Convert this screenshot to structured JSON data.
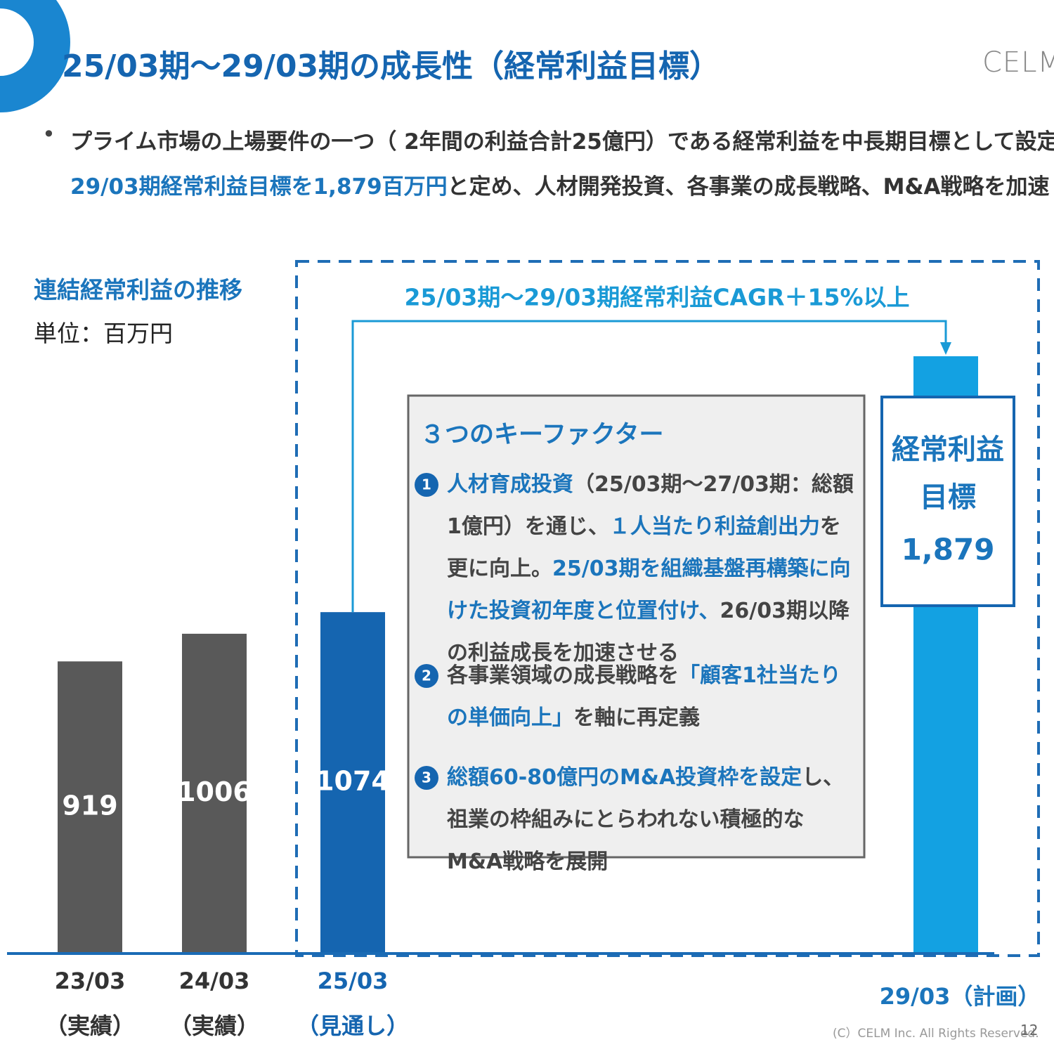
{
  "header": {
    "title": "25/03期～29/03期の成長性（経常利益目標）",
    "logo": "CELM",
    "bullet": [
      {
        "segments": [
          {
            "text": "プライム市場の上場要件の一つ（ 2年間の利益合計25億円）である経常利益を中長期目標として設定。",
            "highlight": false
          }
        ]
      },
      {
        "segments": [
          {
            "text": "29/03期経常利益目標を1,879百万円",
            "highlight": true
          },
          {
            "text": "と定め、人材開発投資、各事業の成長戦略、M&A戦略を加速",
            "highlight": false
          }
        ]
      }
    ]
  },
  "chart_data": {
    "type": "bar",
    "title": "連結経常利益の推移",
    "unit": "単位：百万円",
    "categories": [
      "23/03",
      "24/03",
      "25/03",
      "29/03"
    ],
    "category_notes": [
      "（実績）",
      "（実績）",
      "（見通し）",
      "（計画）"
    ],
    "values": [
      919,
      1006,
      1074,
      1879
    ],
    "value_labels": [
      "919",
      "1006",
      "1074",
      "1,879"
    ],
    "colors": [
      "#595959",
      "#595959",
      "#1565b0",
      "#13a1e2"
    ],
    "target_label": [
      "経常利益",
      "目標"
    ],
    "annotation": "25/03期～29/03期経常利益CAGR＋15%以上"
  },
  "key_factors": {
    "title": "３つのキーファクター",
    "items": [
      {
        "number": "1",
        "segments": [
          {
            "text": "人材育成投資",
            "highlight": true
          },
          {
            "text": "（25/03期～27/03期：総額1億円）を通じ、",
            "highlight": false
          },
          {
            "text": "１人当たり利益創出力",
            "highlight": true
          },
          {
            "text": "を更に向上。",
            "highlight": false
          },
          {
            "text": "25/03期を組織基盤再構築に向けた投資初年度と位置付け、",
            "highlight": true
          },
          {
            "text": "26/03期以降の利益成長を加速させる",
            "highlight": false
          }
        ]
      },
      {
        "number": "2",
        "segments": [
          {
            "text": "各事業領域の成長戦略を",
            "highlight": false
          },
          {
            "text": "「顧客1社当たりの単価向上」",
            "highlight": true
          },
          {
            "text": "を軸に再定義",
            "highlight": false
          }
        ]
      },
      {
        "number": "3",
        "segments": [
          {
            "text": "総額60-80億円のM&A投資枠を設定",
            "highlight": true
          },
          {
            "text": "し、祖業の枠組みにとらわれない積極的なM&A戦略を展開",
            "highlight": false
          }
        ]
      }
    ]
  },
  "footer": {
    "copyright": "(C）CELM Inc. All Rights Reserved.",
    "page": "12"
  }
}
